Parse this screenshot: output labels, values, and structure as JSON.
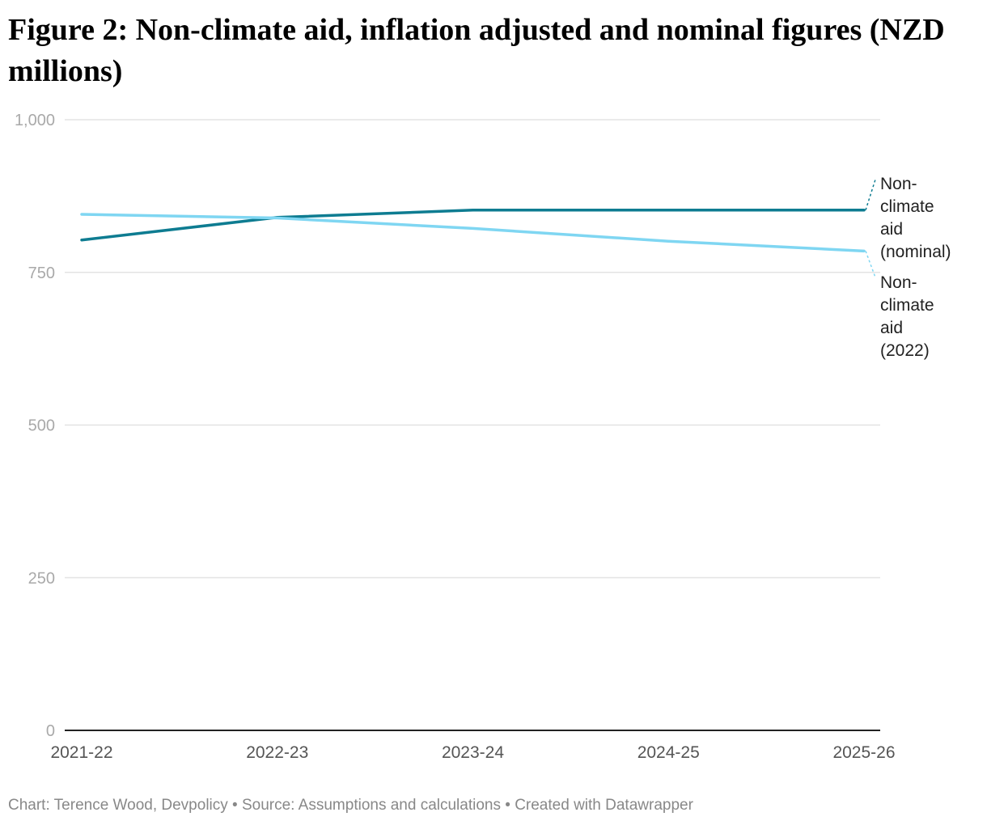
{
  "chart_data": {
    "type": "line",
    "title": "Figure 2: Non-climate aid, inflation adjusted and nominal figures (NZD millions)",
    "categories": [
      "2021-22",
      "2022-23",
      "2023-24",
      "2024-25",
      "2025-26"
    ],
    "series": [
      {
        "name": "Non-climate aid (nominal)",
        "label_lines": [
          "Non-",
          "climate",
          "aid",
          "(nominal)"
        ],
        "color": "#0e7c91",
        "values": [
          803,
          840,
          852,
          852,
          852
        ]
      },
      {
        "name": "Non-climate aid (2022)",
        "label_lines": [
          "Non-",
          "climate",
          "aid",
          "(2022)"
        ],
        "color": "#7fd6f2",
        "values": [
          845,
          839,
          822,
          801,
          785
        ]
      }
    ],
    "ylim": [
      0,
      1000
    ],
    "yticks": [
      {
        "value": 0,
        "label": "0"
      },
      {
        "value": 250,
        "label": "250"
      },
      {
        "value": 500,
        "label": "500"
      },
      {
        "value": 750,
        "label": "750"
      },
      {
        "value": 1000,
        "label": "1,000"
      }
    ],
    "grid": true,
    "xlabel": "",
    "ylabel": ""
  },
  "footer": "Chart: Terence Wood, Devpolicy • Source: Assumptions and calculations • Created with Datawrapper"
}
